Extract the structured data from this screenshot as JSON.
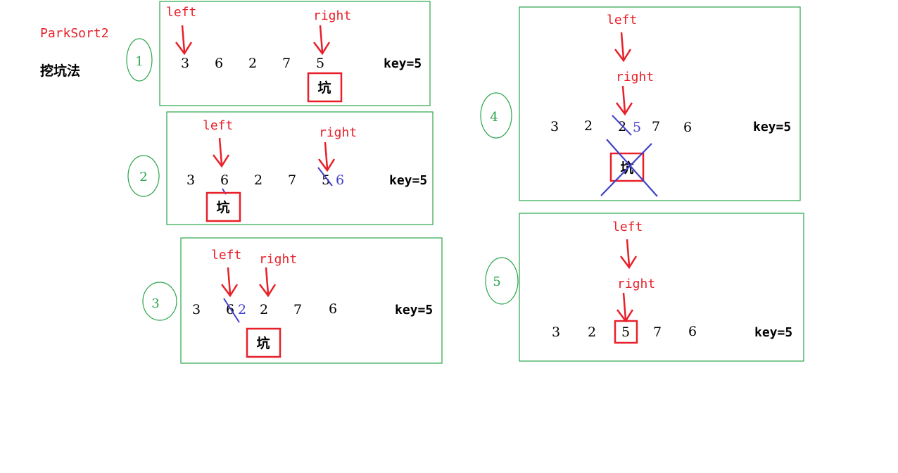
{
  "title": "ParkSort2",
  "subtitle": "挖坑法",
  "colors": {
    "red": "#e8202a",
    "green": "#2aa54a",
    "blue": "#4040c8",
    "black": "#000000"
  },
  "steps": [
    {
      "number": "1",
      "values": [
        "3",
        "6",
        "2",
        "7",
        "5"
      ],
      "key": "key=5",
      "pointers": [
        "left",
        "right"
      ],
      "pit": "坑"
    },
    {
      "number": "2",
      "values": [
        "3",
        "6",
        "2",
        "7",
        "5"
      ],
      "replacement": "6",
      "key": "key=5",
      "pointers": [
        "left",
        "right"
      ],
      "pit": "坑"
    },
    {
      "number": "3",
      "values": [
        "3",
        "6",
        "2",
        "7",
        "6"
      ],
      "replacement": "2",
      "key": "key=5",
      "pointers": [
        "left",
        "right"
      ],
      "pit": "坑"
    },
    {
      "number": "4",
      "values": [
        "3",
        "2",
        "2",
        "7",
        "6"
      ],
      "replacement": "5",
      "key": "key=5",
      "pointers": [
        "left",
        "right"
      ],
      "pit": "坑"
    },
    {
      "number": "5",
      "values": [
        "3",
        "2",
        "5",
        "7",
        "6"
      ],
      "key": "key=5",
      "pointers": [
        "left",
        "right"
      ]
    }
  ]
}
